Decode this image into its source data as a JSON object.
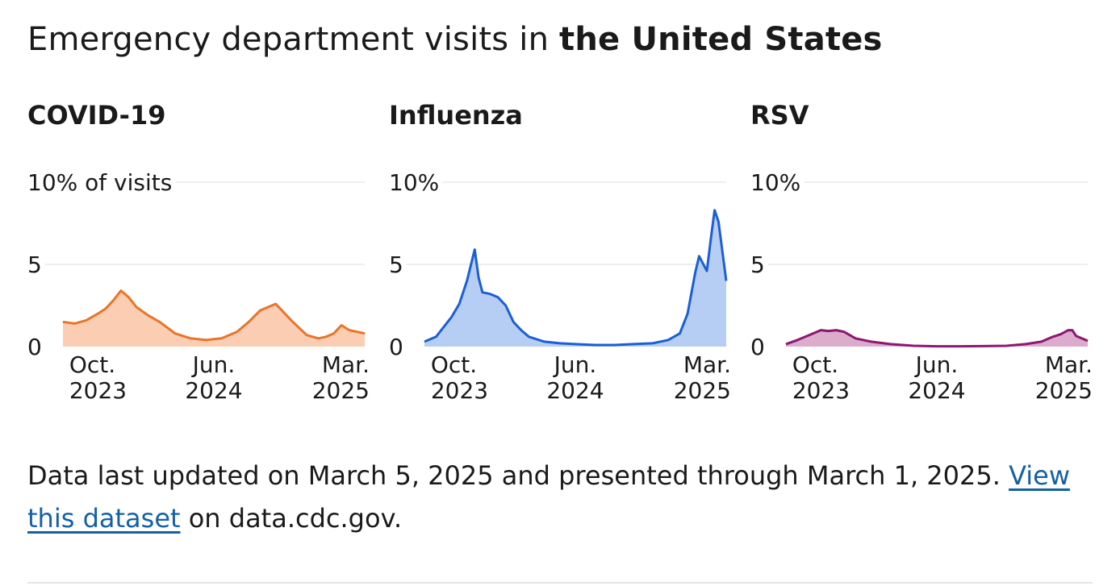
{
  "heading": {
    "prefix": "Emergency department visits in ",
    "place": "the United States"
  },
  "chart_data": [
    {
      "type": "area",
      "title": "COVID-19",
      "ylabel": "% of visits",
      "ylim": [
        0,
        10
      ],
      "yticks": [
        0,
        5,
        10
      ],
      "ytick_labels": [
        "0",
        "5",
        "10% of visits"
      ],
      "xtick_dates": [
        "2023-10-01",
        "2024-06-01",
        "2025-03-01"
      ],
      "xtick_labels": [
        [
          "Oct.",
          "2023"
        ],
        [
          "Jun.",
          "2024"
        ],
        [
          "Mar.",
          "2025"
        ]
      ],
      "x_range": [
        "2023-09-02",
        "2025-03-01"
      ],
      "color": "#e8752a",
      "fill": "#fbcdb2",
      "x": [
        "2023-09-02",
        "2023-09-23",
        "2023-10-14",
        "2023-11-04",
        "2023-11-18",
        "2023-12-02",
        "2023-12-16",
        "2023-12-30",
        "2024-01-13",
        "2024-02-03",
        "2024-02-24",
        "2024-03-23",
        "2024-04-20",
        "2024-05-18",
        "2024-06-15",
        "2024-07-13",
        "2024-08-03",
        "2024-08-24",
        "2024-09-21",
        "2024-10-19",
        "2024-11-16",
        "2024-12-07",
        "2024-12-21",
        "2025-01-04",
        "2025-01-18",
        "2025-02-01",
        "2025-03-01"
      ],
      "values": [
        1.5,
        1.4,
        1.6,
        2.0,
        2.3,
        2.8,
        3.4,
        3.0,
        2.4,
        1.9,
        1.5,
        0.8,
        0.5,
        0.4,
        0.5,
        0.9,
        1.5,
        2.2,
        2.6,
        1.6,
        0.7,
        0.5,
        0.6,
        0.8,
        1.3,
        1.0,
        0.8
      ]
    },
    {
      "type": "area",
      "title": "Influenza",
      "ylim": [
        0,
        10
      ],
      "yticks": [
        0,
        5,
        10
      ],
      "ytick_labels": [
        "0",
        "5",
        "10%"
      ],
      "xtick_dates": [
        "2023-10-01",
        "2024-06-01",
        "2025-03-01"
      ],
      "xtick_labels": [
        [
          "Oct.",
          "2023"
        ],
        [
          "Jun.",
          "2024"
        ],
        [
          "Mar.",
          "2025"
        ]
      ],
      "x_range": [
        "2023-09-02",
        "2025-03-01"
      ],
      "color": "#1b5fd3",
      "fill": "#b6cef3",
      "x": [
        "2023-09-02",
        "2023-09-23",
        "2023-10-07",
        "2023-10-21",
        "2023-11-04",
        "2023-11-18",
        "2023-12-02",
        "2023-12-09",
        "2023-12-16",
        "2023-12-30",
        "2024-01-13",
        "2024-01-27",
        "2024-02-10",
        "2024-02-24",
        "2024-03-09",
        "2024-04-06",
        "2024-05-04",
        "2024-06-01",
        "2024-07-06",
        "2024-08-10",
        "2024-09-14",
        "2024-10-19",
        "2024-11-16",
        "2024-12-07",
        "2024-12-21",
        "2025-01-04",
        "2025-01-11",
        "2025-01-25",
        "2025-02-01",
        "2025-02-08",
        "2025-02-15",
        "2025-03-01"
      ],
      "values": [
        0.3,
        0.6,
        1.2,
        1.8,
        2.6,
        4.0,
        5.9,
        4.2,
        3.3,
        3.2,
        3.0,
        2.5,
        1.5,
        1.0,
        0.6,
        0.3,
        0.2,
        0.15,
        0.1,
        0.1,
        0.15,
        0.2,
        0.4,
        0.8,
        2.0,
        4.5,
        5.5,
        4.6,
        6.5,
        8.3,
        7.6,
        4.0
      ]
    },
    {
      "type": "area",
      "title": "RSV",
      "ylim": [
        0,
        10
      ],
      "yticks": [
        0,
        5,
        10
      ],
      "ytick_labels": [
        "0",
        "5",
        "10%"
      ],
      "xtick_dates": [
        "2023-10-01",
        "2024-06-01",
        "2025-03-01"
      ],
      "xtick_labels": [
        [
          "Oct.",
          "2023"
        ],
        [
          "Jun.",
          "2024"
        ],
        [
          "Mar.",
          "2025"
        ]
      ],
      "x_range": [
        "2023-09-02",
        "2025-03-01"
      ],
      "color": "#8e1770",
      "fill": "#dbaccc",
      "x": [
        "2023-09-02",
        "2023-09-23",
        "2023-10-14",
        "2023-11-04",
        "2023-11-18",
        "2023-12-02",
        "2023-12-16",
        "2024-01-06",
        "2024-02-03",
        "2024-03-09",
        "2024-04-20",
        "2024-06-01",
        "2024-07-13",
        "2024-08-24",
        "2024-10-05",
        "2024-11-09",
        "2024-12-07",
        "2024-12-28",
        "2025-01-11",
        "2025-01-25",
        "2025-02-01",
        "2025-02-08",
        "2025-03-01"
      ],
      "values": [
        0.15,
        0.4,
        0.7,
        1.0,
        0.95,
        1.0,
        0.9,
        0.5,
        0.3,
        0.15,
        0.05,
        0.02,
        0.02,
        0.03,
        0.05,
        0.15,
        0.3,
        0.6,
        0.75,
        1.0,
        1.0,
        0.65,
        0.35
      ]
    }
  ],
  "footer": {
    "text_before": "Data last updated on March 5, 2025 and presented through March 1, 2025. ",
    "link_text": "View this dataset",
    "text_after": " on data.cdc.gov."
  }
}
